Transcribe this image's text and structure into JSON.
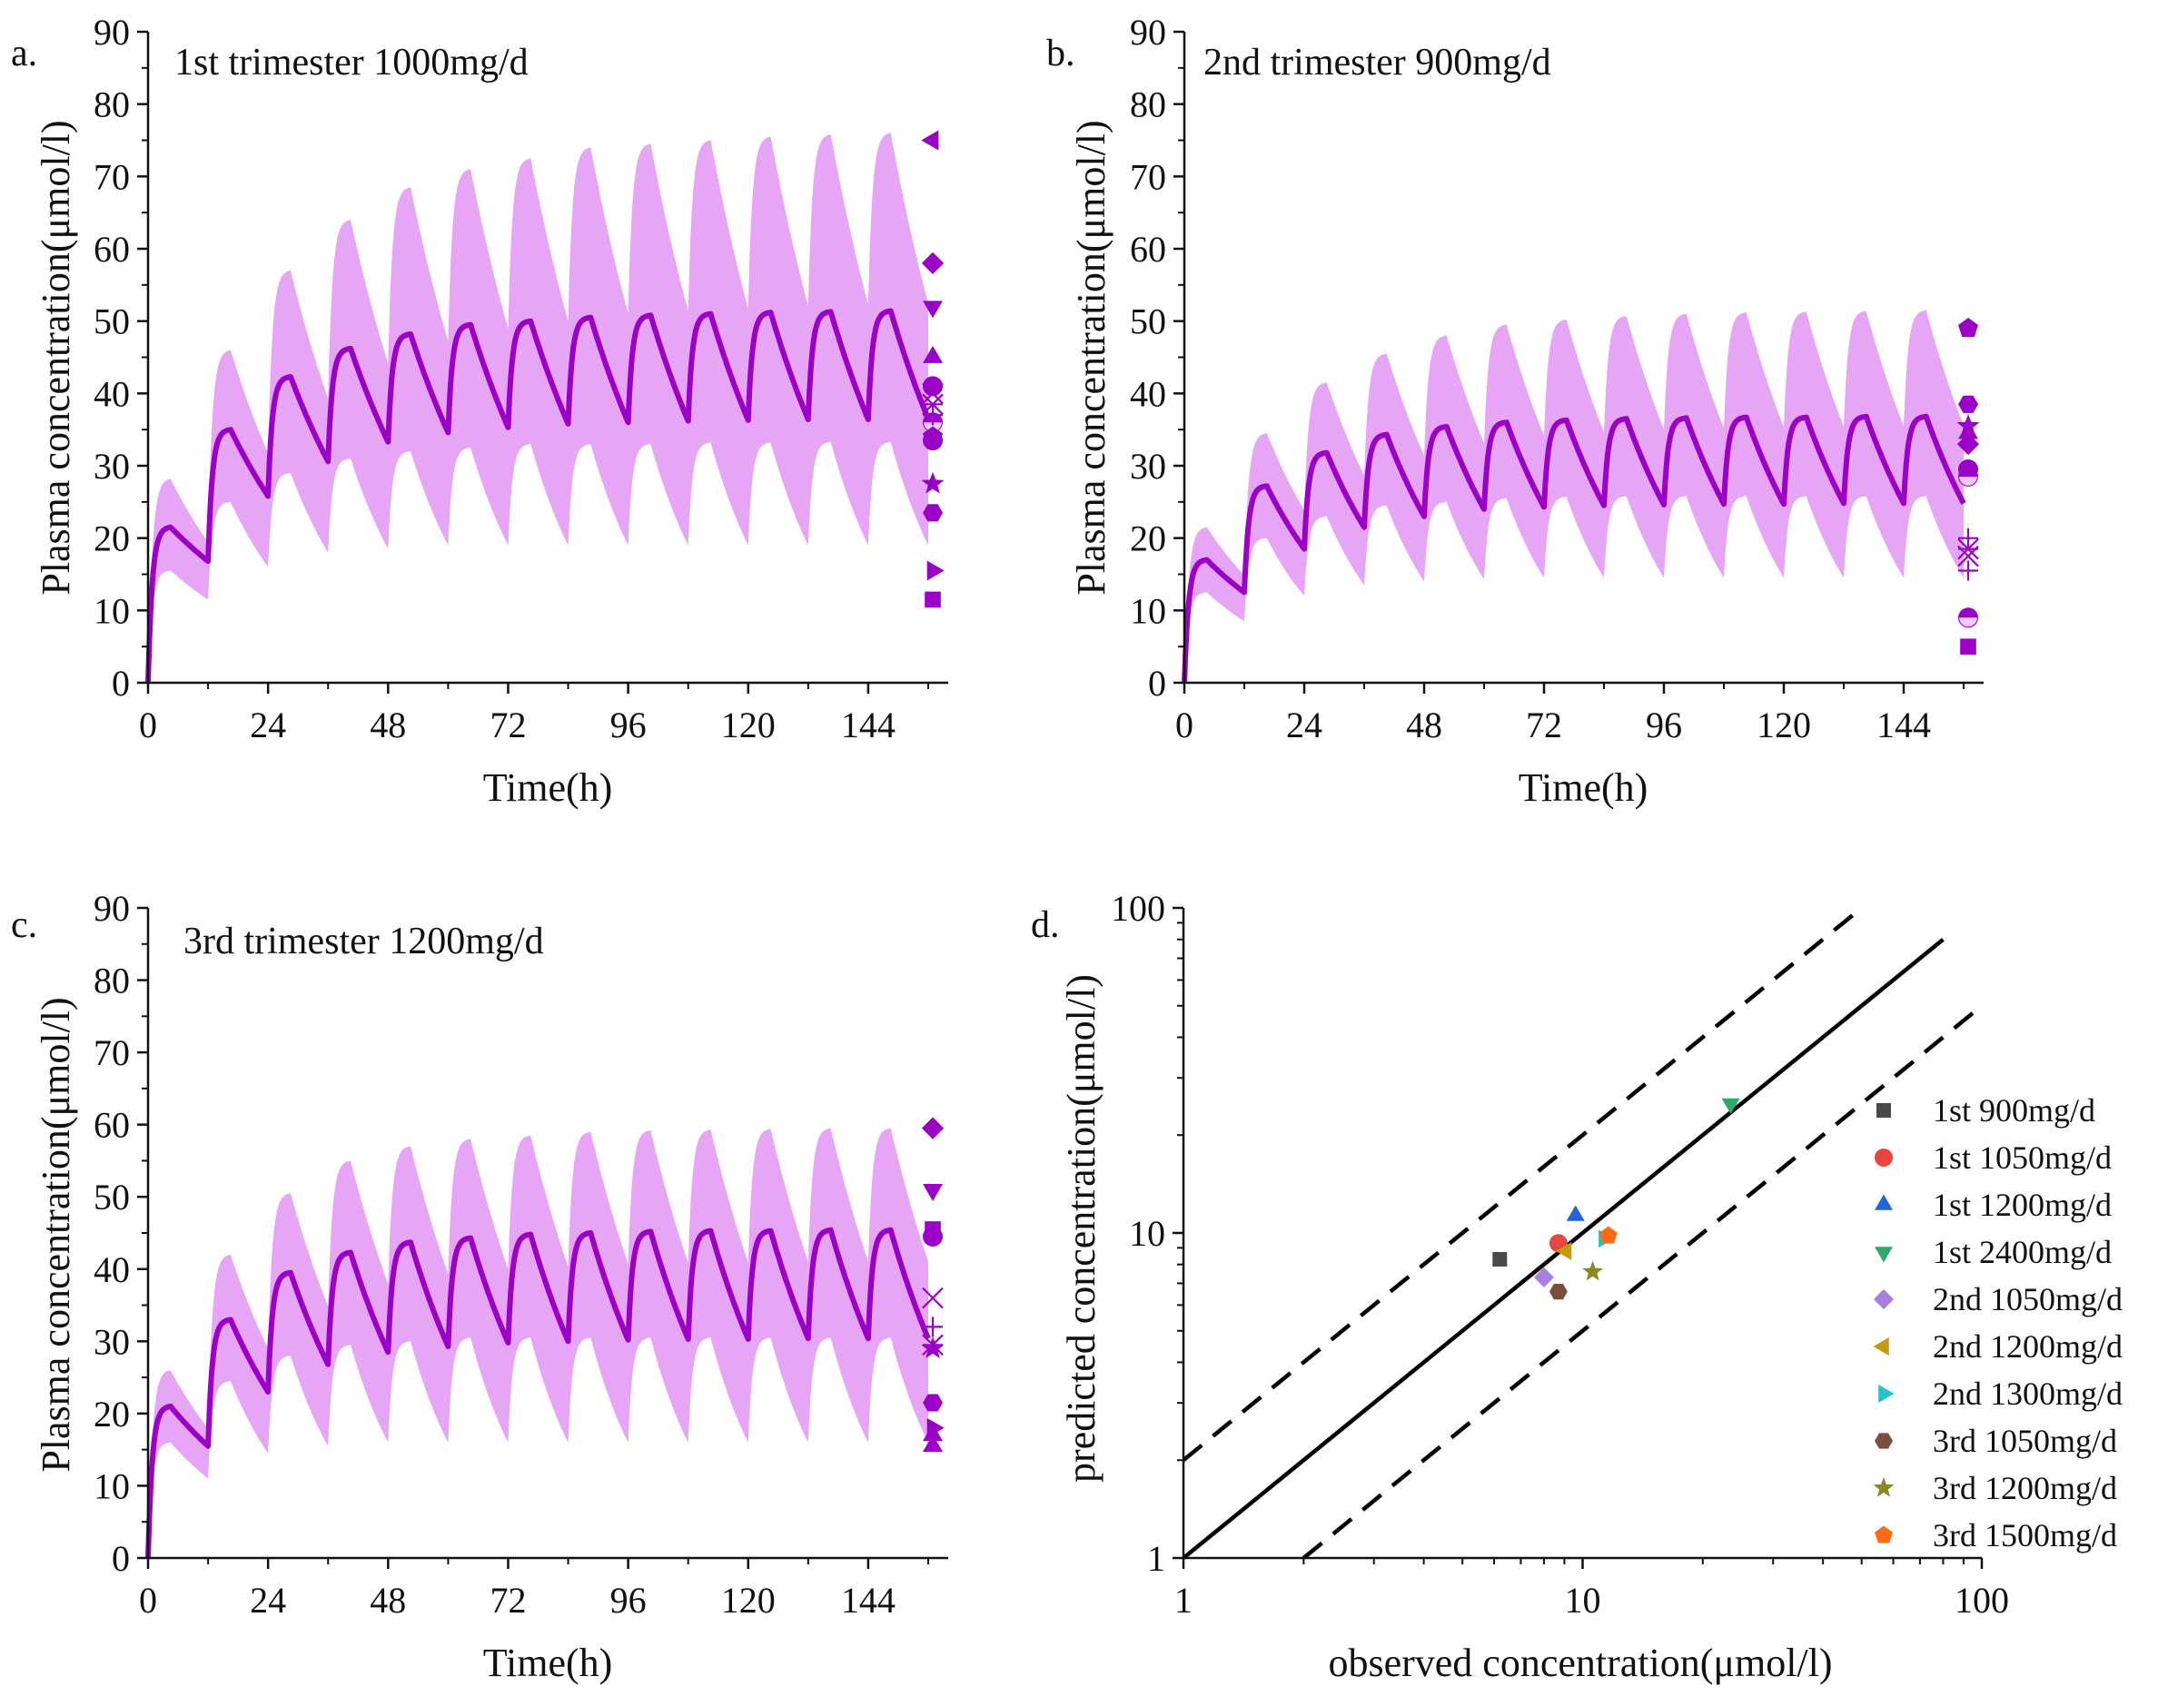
{
  "colors": {
    "accent": "#9b00c6",
    "band": "#e7a6f5",
    "axis": "#111111",
    "line_unity": "#000000"
  },
  "chart_data": [
    {
      "id": "a",
      "type": "line",
      "panel_letter": "a.",
      "title": "1st trimester 1000mg/d",
      "xlabel": "Time(h)",
      "ylabel": "Plasma concentration(μmol/l)",
      "xlim": [
        0,
        160
      ],
      "ylim": [
        0,
        90
      ],
      "xticks": [
        0,
        24,
        48,
        72,
        96,
        120,
        144
      ],
      "yticks": [
        0,
        10,
        20,
        30,
        40,
        50,
        60,
        70,
        80,
        90
      ],
      "dosing_interval_h": 12,
      "series": [
        {
          "name": "Predicted mean",
          "role": "mean",
          "peaks": [
            21.5,
            35,
            42.3,
            46.2,
            48.2,
            49.5,
            50,
            50.5,
            50.8,
            51,
            51.2,
            51.3,
            51.4
          ],
          "troughs": [
            16.8,
            25.8,
            30.6,
            33.3,
            34.6,
            35.3,
            35.8,
            36,
            36.2,
            36.3,
            36.4,
            36.4,
            36.5
          ]
        },
        {
          "name": "Predicted 5th-95th percentile",
          "role": "band",
          "upper_peaks": [
            28.2,
            46,
            57,
            64,
            68.5,
            71,
            72.5,
            74,
            74.5,
            75,
            75.5,
            75.8,
            76
          ],
          "lower_peaks": [
            15.5,
            25,
            29,
            31,
            32,
            32.5,
            33,
            33,
            33,
            33.2,
            33.2,
            33.3,
            33.3
          ],
          "lower_troughs": [
            11.5,
            16,
            18,
            18.5,
            19,
            19,
            19,
            19,
            19,
            19,
            19,
            19,
            19
          ]
        },
        {
          "name": "Observed",
          "role": "observed",
          "x": [
            156,
            156,
            156,
            156,
            156,
            156,
            156,
            156,
            156,
            156,
            156,
            156,
            156,
            156,
            156
          ],
          "y": [
            75,
            58,
            52,
            45,
            41,
            40,
            38.5,
            36,
            34,
            33.5,
            27.5,
            23.5,
            15.5,
            11.5,
            37
          ],
          "markers": [
            "triangle-left",
            "diamond",
            "triangle-down",
            "triangle-up",
            "circle",
            "x",
            "asterisk",
            "circle-half",
            "pentagon",
            "circle",
            "star",
            "hexagon",
            "triangle-right",
            "square",
            "plus"
          ]
        }
      ]
    },
    {
      "id": "b",
      "type": "line",
      "panel_letter": "b.",
      "title": "2nd trimester 900mg/d",
      "xlabel": "Time(h)",
      "ylabel": "Plasma concentration(μmol/l)",
      "xlim": [
        0,
        160
      ],
      "ylim": [
        0,
        90
      ],
      "xticks": [
        0,
        24,
        48,
        72,
        96,
        120,
        144
      ],
      "yticks": [
        0,
        10,
        20,
        30,
        40,
        50,
        60,
        70,
        80,
        90
      ],
      "dosing_interval_h": 12,
      "series": [
        {
          "name": "Predicted mean",
          "role": "mean",
          "peaks": [
            17,
            27.2,
            31.8,
            34.3,
            35.4,
            36,
            36.3,
            36.5,
            36.6,
            36.7,
            36.7,
            36.8,
            36.8
          ],
          "troughs": [
            12.5,
            18.5,
            21.5,
            23,
            24,
            24.3,
            24.5,
            24.6,
            24.7,
            24.7,
            24.8,
            24.8,
            24.8
          ]
        },
        {
          "name": "Predicted 5th-95th percentile",
          "role": "band",
          "upper_peaks": [
            21.5,
            34.5,
            41.5,
            45.5,
            48,
            49.5,
            50.2,
            50.7,
            51,
            51.2,
            51.3,
            51.4,
            51.5
          ],
          "lower_peaks": [
            12.5,
            20,
            23,
            24.5,
            25,
            25.5,
            25.7,
            25.8,
            25.8,
            25.8,
            25.8,
            25.8,
            25.8
          ],
          "lower_troughs": [
            8.5,
            12,
            13.5,
            14,
            14.3,
            14.5,
            14.5,
            14.5,
            14.5,
            14.5,
            14.5,
            14.5,
            14.5
          ]
        },
        {
          "name": "Observed",
          "role": "observed",
          "x": [
            156,
            156,
            156,
            156,
            156,
            156,
            156,
            156,
            156,
            156,
            156,
            156,
            156
          ],
          "y": [
            49,
            38.5,
            35.5,
            34.5,
            33,
            29.5,
            28.5,
            20,
            18.5,
            17.5,
            15.5,
            9,
            5
          ],
          "markers": [
            "pentagon",
            "hexagon",
            "star",
            "triangle-up",
            "diamond",
            "circle",
            "circle-half",
            "plus",
            "asterisk",
            "x",
            "plus",
            "circle-half",
            "square"
          ]
        }
      ]
    },
    {
      "id": "c",
      "type": "line",
      "panel_letter": "c.",
      "title": "3rd trimester 1200mg/d",
      "xlabel": "Time(h)",
      "ylabel": "Plasma concentration(μmol/l)",
      "xlim": [
        0,
        160
      ],
      "ylim": [
        0,
        90
      ],
      "xticks": [
        0,
        24,
        48,
        72,
        96,
        120,
        144
      ],
      "yticks": [
        0,
        10,
        20,
        30,
        40,
        50,
        60,
        70,
        80,
        90
      ],
      "dosing_interval_h": 12,
      "series": [
        {
          "name": "Predicted mean",
          "role": "mean",
          "peaks": [
            21,
            33,
            39.5,
            42.3,
            43.7,
            44.3,
            44.8,
            45,
            45.2,
            45.3,
            45.3,
            45.4,
            45.4
          ],
          "troughs": [
            15.5,
            23,
            26.8,
            28.5,
            29.3,
            29.8,
            30,
            30.2,
            30.3,
            30.3,
            30.4,
            30.4,
            30.4
          ]
        },
        {
          "name": "Predicted 5th-95th percentile",
          "role": "band",
          "upper_peaks": [
            26,
            42,
            50.5,
            55,
            57,
            58,
            58.5,
            59,
            59.2,
            59.3,
            59.4,
            59.5,
            59.5
          ],
          "lower_peaks": [
            16,
            24.5,
            28,
            29.5,
            30,
            30.5,
            30.5,
            30.5,
            30.5,
            30.5,
            30.5,
            30.5,
            30.5
          ],
          "lower_troughs": [
            11,
            14.5,
            15.5,
            16,
            16,
            16,
            16,
            16,
            16,
            16,
            16,
            16,
            16
          ]
        },
        {
          "name": "Observed",
          "role": "observed",
          "x": [
            156,
            156,
            156,
            156,
            156,
            156,
            156,
            156,
            156,
            156,
            156,
            156
          ],
          "y": [
            59.5,
            51,
            45.5,
            44.5,
            36,
            32,
            29,
            21.5,
            18,
            17,
            15.5,
            29.5
          ],
          "markers": [
            "diamond",
            "triangle-down",
            "square",
            "circle",
            "x",
            "plus",
            "star",
            "hexagon",
            "triangle-right",
            "triangle-up",
            "triangle-up",
            "asterisk"
          ]
        }
      ]
    },
    {
      "id": "d",
      "type": "scatter",
      "panel_letter": "d.",
      "xlabel": "observed concentration(μmol/l)",
      "ylabel": "predicted concentration(μmol/l)",
      "xscale": "log",
      "yscale": "log",
      "xlim": [
        1,
        100
      ],
      "ylim": [
        1,
        100
      ],
      "xticks": [
        1,
        10,
        100
      ],
      "yticks": [
        1,
        10,
        100
      ],
      "xtick_labels": [
        "1",
        "10",
        "100"
      ],
      "ytick_labels": [
        "1",
        "10",
        "100"
      ],
      "reference_lines": [
        {
          "name": "line of unity",
          "style": "solid",
          "factor": 1,
          "x_end": 80
        },
        {
          "name": "2-fold upper",
          "style": "dashed",
          "factor": 2,
          "x_end": 50
        },
        {
          "name": "0.5-fold lower",
          "style": "dashed",
          "factor": 0.5,
          "x_end": 100
        }
      ],
      "legend_position": "right",
      "series": [
        {
          "name": "1st 900mg/d",
          "marker": "square",
          "color": "#4a4a4a",
          "x": [
            6.2
          ],
          "y": [
            8.3
          ]
        },
        {
          "name": "1st 1050mg/d",
          "marker": "circle",
          "color": "#e8473f",
          "x": [
            8.7
          ],
          "y": [
            9.3
          ]
        },
        {
          "name": "1st 1200mg/d",
          "marker": "triangle-up",
          "color": "#2166d8",
          "x": [
            9.6
          ],
          "y": [
            11.3
          ]
        },
        {
          "name": "1st 2400mg/d",
          "marker": "triangle-down",
          "color": "#2ea86b",
          "x": [
            23.5
          ],
          "y": [
            25
          ]
        },
        {
          "name": "2nd 1050mg/d",
          "marker": "diamond",
          "color": "#a77fe0",
          "x": [
            8
          ],
          "y": [
            7.3
          ]
        },
        {
          "name": "2nd 1200mg/d",
          "marker": "triangle-left",
          "color": "#c29c0c",
          "x": [
            9.1
          ],
          "y": [
            8.8
          ]
        },
        {
          "name": "2nd 1300mg/d",
          "marker": "triangle-right",
          "color": "#27c3c8",
          "x": [
            11.3
          ],
          "y": [
            9.6
          ]
        },
        {
          "name": "3rd 1050mg/d",
          "marker": "hexagon",
          "color": "#7a4d3e",
          "x": [
            8.7
          ],
          "y": [
            6.6
          ]
        },
        {
          "name": "3rd 1200mg/d",
          "marker": "star",
          "color": "#8a8a1e",
          "x": [
            10.6
          ],
          "y": [
            7.6
          ]
        },
        {
          "name": "3rd 1500mg/d",
          "marker": "pentagon",
          "color": "#ff6a13",
          "x": [
            11.6
          ],
          "y": [
            9.8
          ]
        }
      ]
    }
  ]
}
